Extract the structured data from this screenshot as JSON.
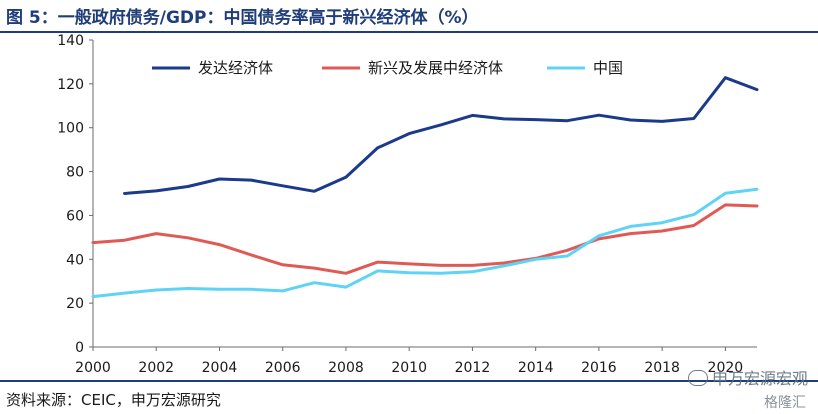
{
  "title": "图 5：一般政府债务/GDP：中国债务率高于新兴经济体（%）",
  "source": "资料来源：CEIC，申万宏源研究",
  "watermark": "申万宏源宏观",
  "watermark2": "格隆汇",
  "colors": {
    "title": "#1f3d7a",
    "advanced": "#1b3a8c",
    "emerging": "#e05a55",
    "china": "#5fd3f5"
  },
  "chart_data": {
    "type": "line",
    "title": "",
    "xlabel": "",
    "ylabel": "",
    "xlim": [
      2000,
      2021
    ],
    "ylim": [
      0,
      140
    ],
    "x_ticks": [
      "2000",
      "2002",
      "2004",
      "2006",
      "2008",
      "2010",
      "2012",
      "2014",
      "2016",
      "2018",
      "2020"
    ],
    "y_ticks": [
      "0",
      "20",
      "40",
      "60",
      "80",
      "100",
      "120",
      "140"
    ],
    "grid": false,
    "legend_position": "top",
    "series": [
      {
        "name": "发达经济体",
        "color": "#1b3a8c",
        "x": [
          2001,
          2002,
          2003,
          2004,
          2005,
          2006,
          2007,
          2008,
          2009,
          2010,
          2011,
          2012,
          2013,
          2014,
          2015,
          2016,
          2017,
          2018,
          2019,
          2020,
          2021
        ],
        "values": [
          70,
          71.2,
          73.2,
          76.6,
          76.1,
          73.5,
          71,
          77.5,
          90.8,
          97.3,
          101.3,
          105.6,
          104,
          103.7,
          103.2,
          105.7,
          103.5,
          102.9,
          104.2,
          122.8,
          117.4
        ]
      },
      {
        "name": "新兴及发展中经济体",
        "color": "#e05a55",
        "x": [
          2000,
          2001,
          2002,
          2003,
          2004,
          2005,
          2006,
          2007,
          2008,
          2009,
          2010,
          2011,
          2012,
          2013,
          2014,
          2015,
          2016,
          2017,
          2018,
          2019,
          2020,
          2021
        ],
        "values": [
          47.6,
          48.7,
          51.7,
          49.8,
          46.7,
          42,
          37.5,
          36,
          33.6,
          38.7,
          37.9,
          37.2,
          37.2,
          38.3,
          40.4,
          44.1,
          49.3,
          51.7,
          52.9,
          55.4,
          64.8,
          64.3
        ]
      },
      {
        "name": "中国",
        "color": "#5fd3f5",
        "x": [
          2000,
          2001,
          2002,
          2003,
          2004,
          2005,
          2006,
          2007,
          2008,
          2009,
          2010,
          2011,
          2012,
          2013,
          2014,
          2015,
          2016,
          2017,
          2018,
          2019,
          2020,
          2021
        ],
        "values": [
          23,
          24.6,
          26,
          26.7,
          26.3,
          26.3,
          25.6,
          29.3,
          27.3,
          34.7,
          33.9,
          33.6,
          34.3,
          37,
          40,
          41.5,
          50.7,
          55,
          56.7,
          60.4,
          70.1,
          71.9
        ]
      }
    ]
  }
}
